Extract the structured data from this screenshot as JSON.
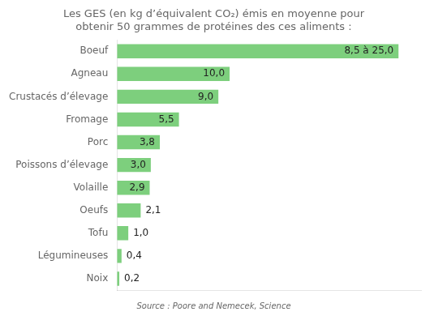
{
  "chart_data": {
    "type": "bar",
    "orientation": "horizontal",
    "title": "Les GES (en kg d’équivalent CO₂) émis en moyenne pour\nobtenir 50 grammes de protéines des ces aliments :",
    "categories": [
      "Boeuf",
      "Agneau",
      "Crustacés d’élevage",
      "Fromage",
      "Porc",
      "Poissons d’élevage",
      "Volaille",
      "Oeufs",
      "Tofu",
      "Légumineuses",
      "Noix"
    ],
    "values": [
      25.0,
      10.0,
      9.0,
      5.5,
      3.8,
      3.0,
      2.9,
      2.1,
      1.0,
      0.4,
      0.2
    ],
    "value_labels": [
      "8,5 à 25,0",
      "10,0",
      "9,0",
      "5,5",
      "3,8",
      "3,0",
      "2,9",
      "2,1",
      "1,0",
      "0,4",
      "0,2"
    ],
    "data_labels": true,
    "color": "#7dcf7d",
    "xlim": [
      0,
      27
    ],
    "grid": false,
    "tick_labels": "y",
    "annotations": [
      "Source : Poore and Nemecek, Science"
    ]
  }
}
